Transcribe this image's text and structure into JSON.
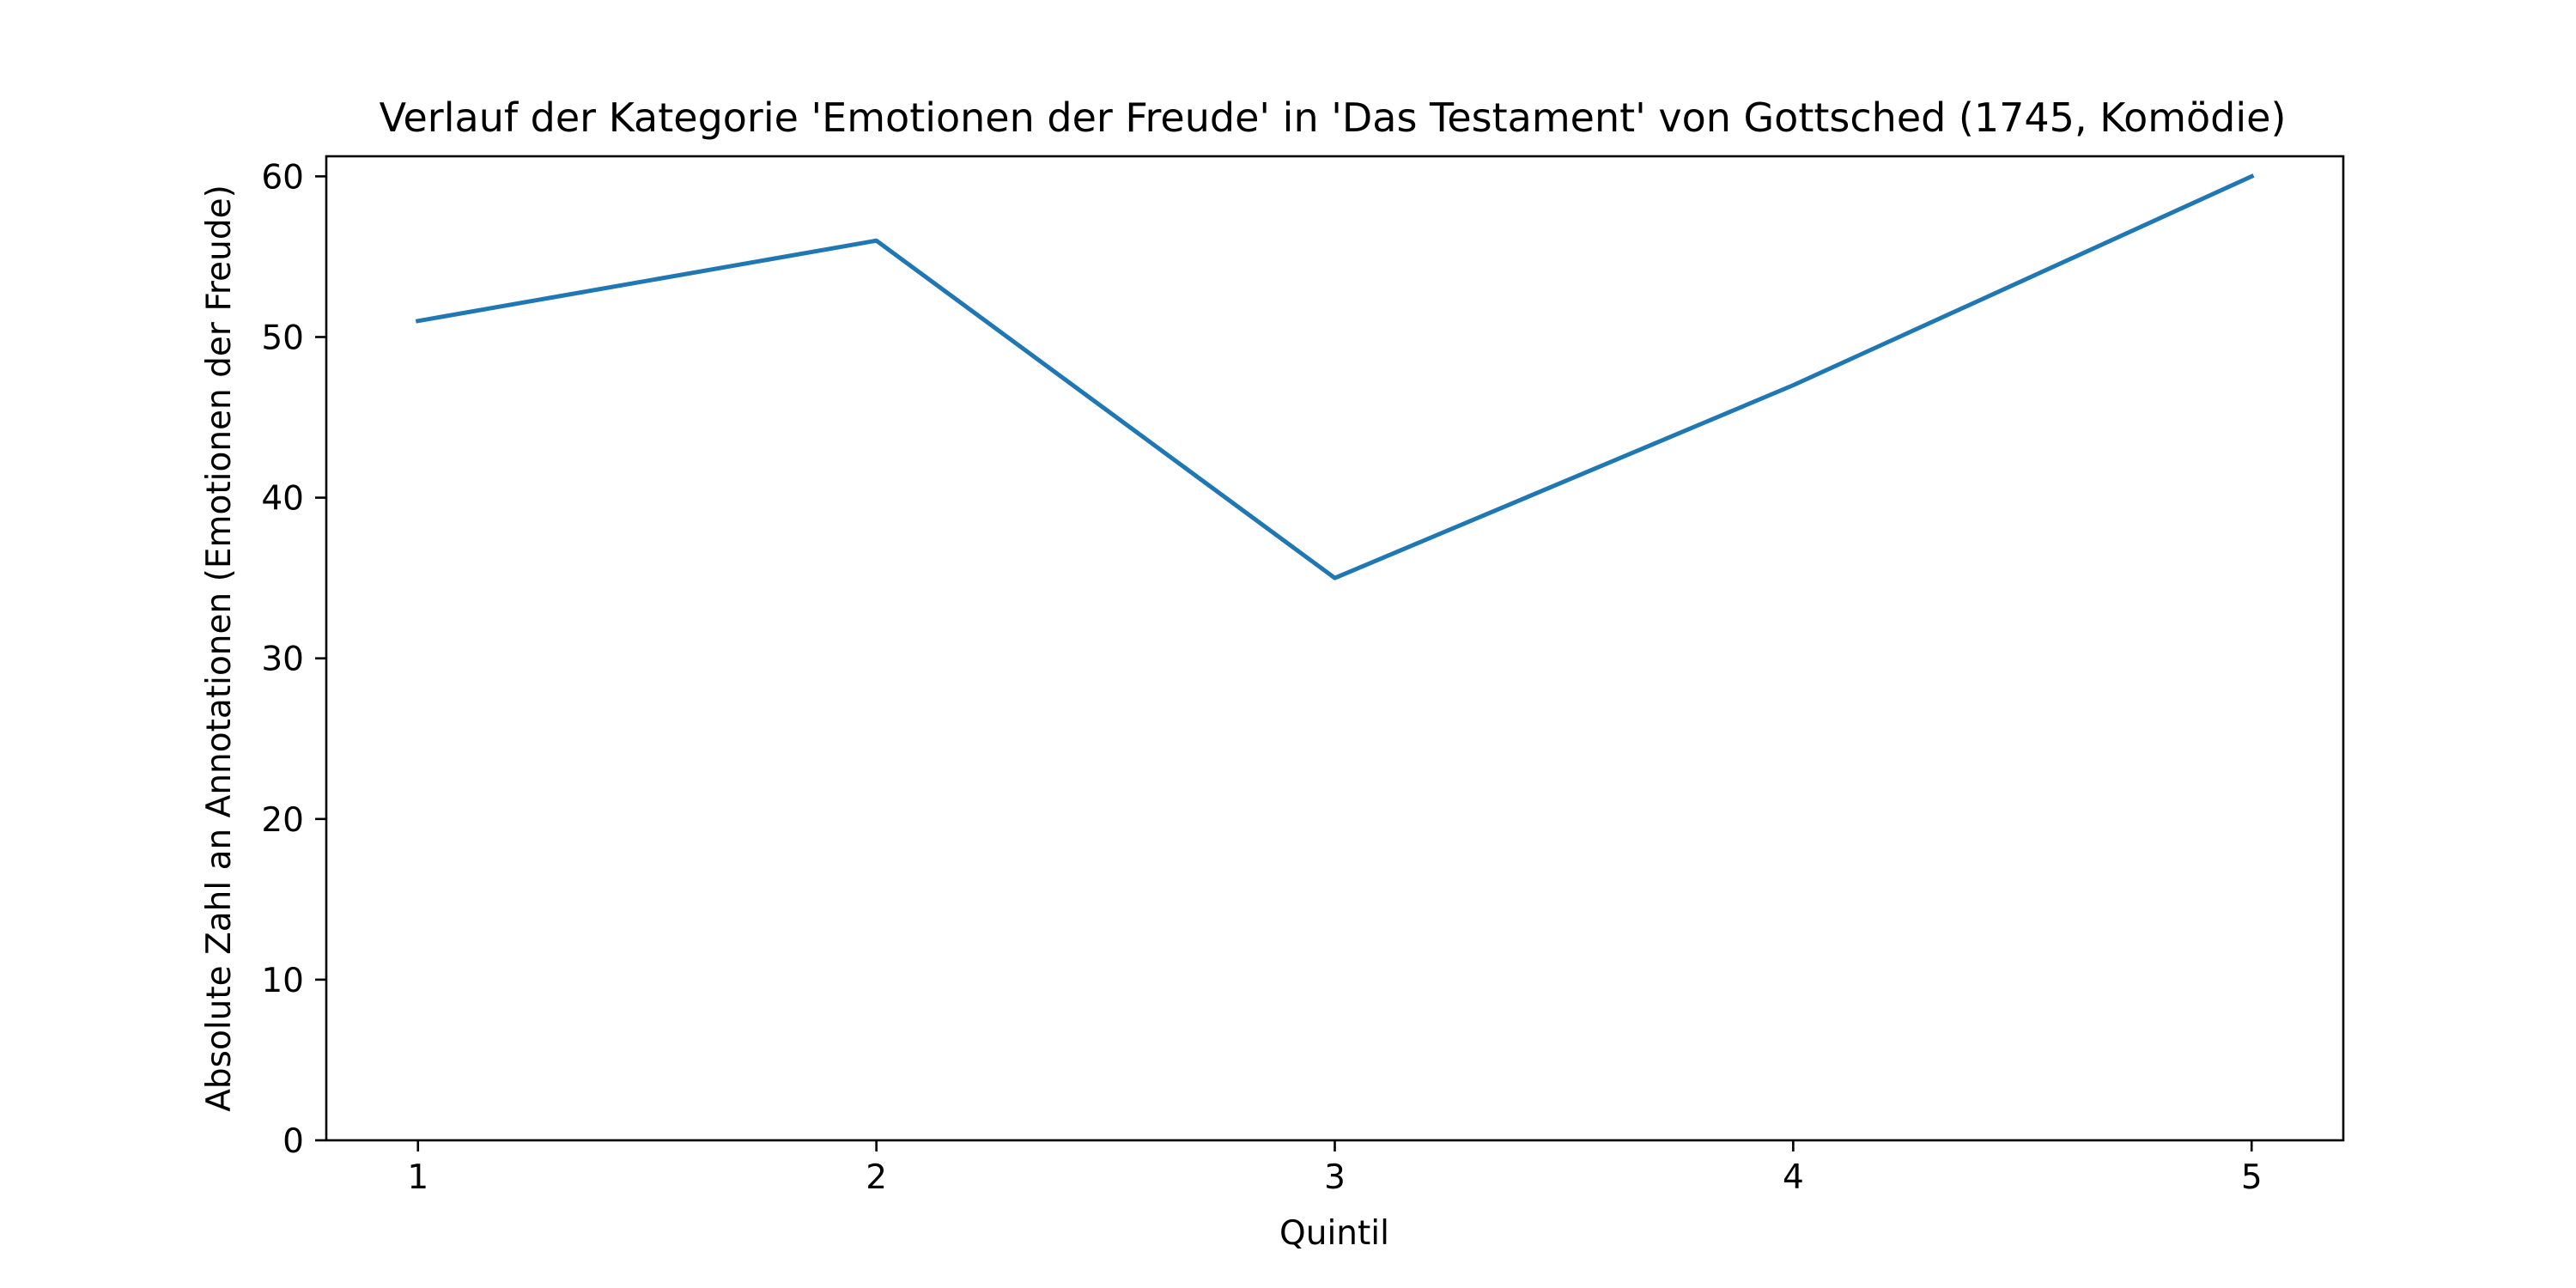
{
  "chart_data": {
    "type": "line",
    "title": "Verlauf der Kategorie 'Emotionen der Freude' in 'Das Testament' von Gottsched (1745, Komödie)",
    "xlabel": "Quintil",
    "ylabel": "Absolute Zahl an Annotationen (Emotionen der Freude)",
    "x": [
      1,
      2,
      3,
      4,
      5
    ],
    "x_ticks": [
      "1",
      "2",
      "3",
      "4",
      "5"
    ],
    "y_ticks": [
      "0",
      "10",
      "20",
      "30",
      "40",
      "50",
      "60"
    ],
    "xlim": [
      0.8,
      5.2
    ],
    "ylim": [
      0,
      61.25
    ],
    "grid": false,
    "series": [
      {
        "values": [
          51,
          56,
          35,
          47,
          60
        ],
        "color": "#1f77b4"
      }
    ]
  }
}
